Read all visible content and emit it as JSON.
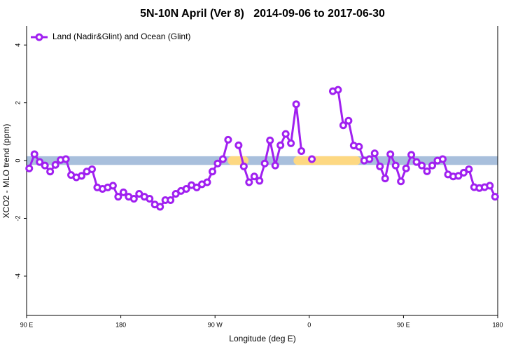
{
  "chart_data": {
    "type": "line",
    "title": "5N-10N April (Ver 8)   2014-09-06 to 2017-06-30",
    "x_label": "Longitude (deg E)",
    "y_label": "XCO2 - MLO trend (ppm)",
    "xlim": [
      90,
      540
    ],
    "ylim": [
      -5.36,
      4.66
    ],
    "xticks": [
      {
        "value": 90,
        "label": "90 E"
      },
      180,
      {
        "value": 270,
        "label": "90 W"
      },
      {
        "value": 360,
        "label": "0"
      },
      {
        "value": 450,
        "label": "90 E"
      },
      {
        "value": 540,
        "label": "180"
      }
    ],
    "yticks": [
      -4,
      -2,
      0,
      2,
      4
    ],
    "band": [
      -0.15,
      0.15
    ],
    "band_color": "#a8bfdc",
    "highlight_ranges": [
      [
        282,
        302
      ],
      [
        345,
        409
      ]
    ],
    "highlight_color": "#fdd882",
    "legend": "top-left",
    "x": [
      92.5,
      97.5,
      102.5,
      107.5,
      112.5,
      117.5,
      122.5,
      127.5,
      132.5,
      137.5,
      142.5,
      147.5,
      152.5,
      157.5,
      162.5,
      167.5,
      172.5,
      177.5,
      182.5,
      187.5,
      192.5,
      197.5,
      202.5,
      207.5,
      212.5,
      217.5,
      222.5,
      227.5,
      232.5,
      237.5,
      242.5,
      247.5,
      252.5,
      257.5,
      262.5,
      267.5,
      272.5,
      277.5,
      282.5,
      287.5,
      292.5,
      297.5,
      302.5,
      307.5,
      312.5,
      317.5,
      322.5,
      327.5,
      332.5,
      337.5,
      342.5,
      347.5,
      352.5,
      357.5,
      362.5,
      367.5,
      372.5,
      377.5,
      382.5,
      387.5,
      392.5,
      397.5,
      402.5,
      407.5,
      412.5,
      417.5,
      422.5,
      427.5,
      432.5,
      437.5,
      442.5,
      447.5,
      452.5,
      457.5,
      462.5,
      467.5,
      472.5,
      477.5,
      482.5,
      487.5,
      492.5,
      497.5,
      502.5,
      507.5,
      512.5,
      517.5,
      522.5,
      527.5,
      532.5,
      537.5
    ],
    "series": [
      {
        "name": "Land (Nadir&Glint) and Ocean (Glint)",
        "color": "#a020f0",
        "values": [
          -0.27,
          0.22,
          -0.05,
          -0.17,
          -0.38,
          -0.15,
          0.02,
          0.05,
          -0.5,
          -0.58,
          -0.53,
          -0.38,
          -0.3,
          -0.93,
          -0.98,
          -0.93,
          -0.87,
          -1.25,
          -1.1,
          -1.25,
          -1.32,
          -1.15,
          -1.25,
          -1.32,
          -1.52,
          -1.6,
          -1.37,
          -1.37,
          -1.15,
          -1.05,
          -0.98,
          -0.85,
          -0.93,
          -0.82,
          -0.75,
          -0.38,
          -0.1,
          0.05,
          0.72,
          null,
          0.53,
          -0.2,
          -0.75,
          -0.55,
          -0.7,
          -0.1,
          0.7,
          -0.17,
          0.53,
          0.92,
          0.6,
          1.95,
          0.33,
          null,
          0.05,
          null,
          null,
          null,
          2.4,
          2.45,
          1.22,
          1.38,
          0.52,
          0.48,
          0.0,
          0.05,
          0.25,
          -0.2,
          -0.62,
          0.22,
          -0.17,
          -0.72,
          -0.27,
          0.2,
          -0.05,
          -0.17,
          -0.37,
          -0.17,
          0.0,
          0.05,
          -0.48,
          -0.55,
          -0.53,
          -0.42,
          -0.3,
          -0.92,
          -0.95,
          -0.92,
          -0.87,
          -1.25
        ]
      }
    ]
  }
}
